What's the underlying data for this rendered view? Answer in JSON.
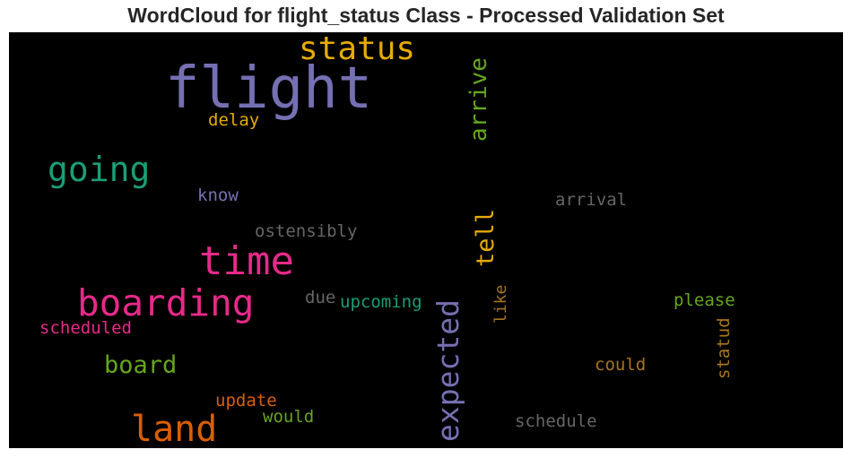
{
  "title": "WordCloud for flight_status Class - Processed Validation Set",
  "words": [
    {
      "text": "flight",
      "color": "#7570b3",
      "orientation": "horizontal"
    },
    {
      "text": "status",
      "color": "#e6ab02",
      "orientation": "horizontal"
    },
    {
      "text": "arrive",
      "color": "#66a61e",
      "orientation": "vertical"
    },
    {
      "text": "delay",
      "color": "#e6ab02",
      "orientation": "horizontal"
    },
    {
      "text": "going",
      "color": "#1b9e77",
      "orientation": "horizontal"
    },
    {
      "text": "know",
      "color": "#7570b3",
      "orientation": "horizontal"
    },
    {
      "text": "arrival",
      "color": "#666666",
      "orientation": "horizontal"
    },
    {
      "text": "tell",
      "color": "#e6ab02",
      "orientation": "vertical"
    },
    {
      "text": "ostensibly",
      "color": "#666666",
      "orientation": "horizontal"
    },
    {
      "text": "time",
      "color": "#e7298a",
      "orientation": "horizontal"
    },
    {
      "text": "boarding",
      "color": "#e7298a",
      "orientation": "horizontal"
    },
    {
      "text": "due",
      "color": "#666666",
      "orientation": "horizontal"
    },
    {
      "text": "upcoming",
      "color": "#1b9e77",
      "orientation": "horizontal"
    },
    {
      "text": "expected",
      "color": "#7570b3",
      "orientation": "vertical"
    },
    {
      "text": "like",
      "color": "#a6761d",
      "orientation": "vertical"
    },
    {
      "text": "please",
      "color": "#66a61e",
      "orientation": "horizontal"
    },
    {
      "text": "scheduled",
      "color": "#e7298a",
      "orientation": "horizontal"
    },
    {
      "text": "statud",
      "color": "#a6761d",
      "orientation": "vertical"
    },
    {
      "text": "board",
      "color": "#66a61e",
      "orientation": "horizontal"
    },
    {
      "text": "could",
      "color": "#a6761d",
      "orientation": "horizontal"
    },
    {
      "text": "update",
      "color": "#d95f02",
      "orientation": "horizontal"
    },
    {
      "text": "would",
      "color": "#66a61e",
      "orientation": "horizontal"
    },
    {
      "text": "land",
      "color": "#d95f02",
      "orientation": "horizontal"
    },
    {
      "text": "schedule",
      "color": "#666666",
      "orientation": "horizontal"
    }
  ]
}
